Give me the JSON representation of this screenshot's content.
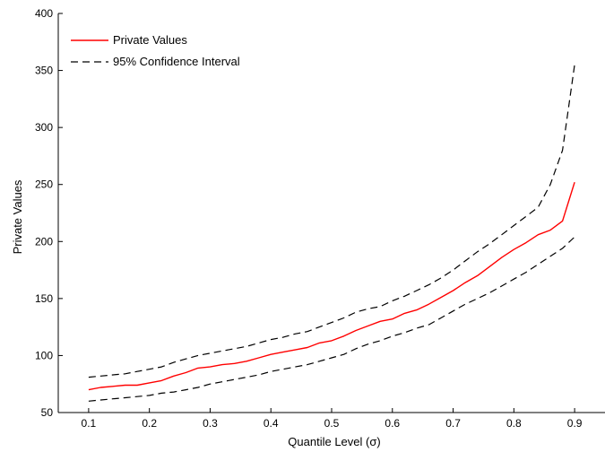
{
  "chart_data": {
    "type": "line",
    "xlabel": "Quantile Level (σ)",
    "ylabel": "Private Values",
    "xlim": [
      0.05,
      0.95
    ],
    "ylim": [
      50,
      400
    ],
    "xticks": [
      0.1,
      0.2,
      0.3,
      0.4,
      0.5,
      0.6,
      0.7,
      0.8,
      0.9
    ],
    "xtick_labels": [
      "0.1",
      "0.2",
      "0.3",
      "0.4",
      "0.5",
      "0.6",
      "0.7",
      "0.8",
      "0.9"
    ],
    "yticks": [
      50,
      100,
      150,
      200,
      250,
      300,
      350,
      400
    ],
    "ytick_labels": [
      "50",
      "100",
      "150",
      "200",
      "250",
      "300",
      "350",
      "400"
    ],
    "grid": false,
    "legend": {
      "position": "top-left",
      "entries": [
        "Private Values",
        "95% Confidence Interval"
      ]
    },
    "x": [
      0.1,
      0.12,
      0.14,
      0.16,
      0.18,
      0.2,
      0.22,
      0.24,
      0.26,
      0.28,
      0.3,
      0.32,
      0.34,
      0.36,
      0.38,
      0.4,
      0.42,
      0.44,
      0.46,
      0.48,
      0.5,
      0.52,
      0.54,
      0.56,
      0.58,
      0.6,
      0.62,
      0.64,
      0.66,
      0.68,
      0.7,
      0.72,
      0.74,
      0.76,
      0.78,
      0.8,
      0.82,
      0.84,
      0.86,
      0.88,
      0.9
    ],
    "series": [
      {
        "name": "Private Values",
        "color": "#ff0000",
        "style": "solid",
        "values": [
          70,
          72,
          73,
          74,
          74,
          76,
          78,
          82,
          85,
          89,
          90,
          92,
          93,
          95,
          98,
          101,
          103,
          105,
          107,
          111,
          113,
          117,
          122,
          126,
          130,
          132,
          137,
          140,
          145,
          151,
          157,
          164,
          170,
          178,
          186,
          193,
          199,
          206,
          210,
          218,
          252
        ]
      },
      {
        "name": "95% Confidence Interval",
        "color": "#000000",
        "style": "dashed",
        "values": [
          81,
          82,
          83,
          84,
          86,
          88,
          90,
          94,
          97,
          100,
          102,
          104,
          106,
          108,
          111,
          114,
          116,
          119,
          121,
          125,
          129,
          133,
          138,
          141,
          143,
          148,
          152,
          157,
          162,
          168,
          175,
          183,
          191,
          198,
          206,
          214,
          222,
          230,
          250,
          280,
          355
        ]
      },
      {
        "color": "#000000",
        "style": "dashed",
        "values": [
          60,
          61,
          62,
          63,
          64,
          65,
          67,
          68,
          70,
          72,
          75,
          77,
          79,
          81,
          83,
          86,
          88,
          90,
          92,
          95,
          98,
          101,
          106,
          110,
          113,
          117,
          120,
          124,
          127,
          133,
          139,
          145,
          150,
          155,
          161,
          167,
          173,
          180,
          187,
          194,
          204
        ]
      }
    ]
  }
}
